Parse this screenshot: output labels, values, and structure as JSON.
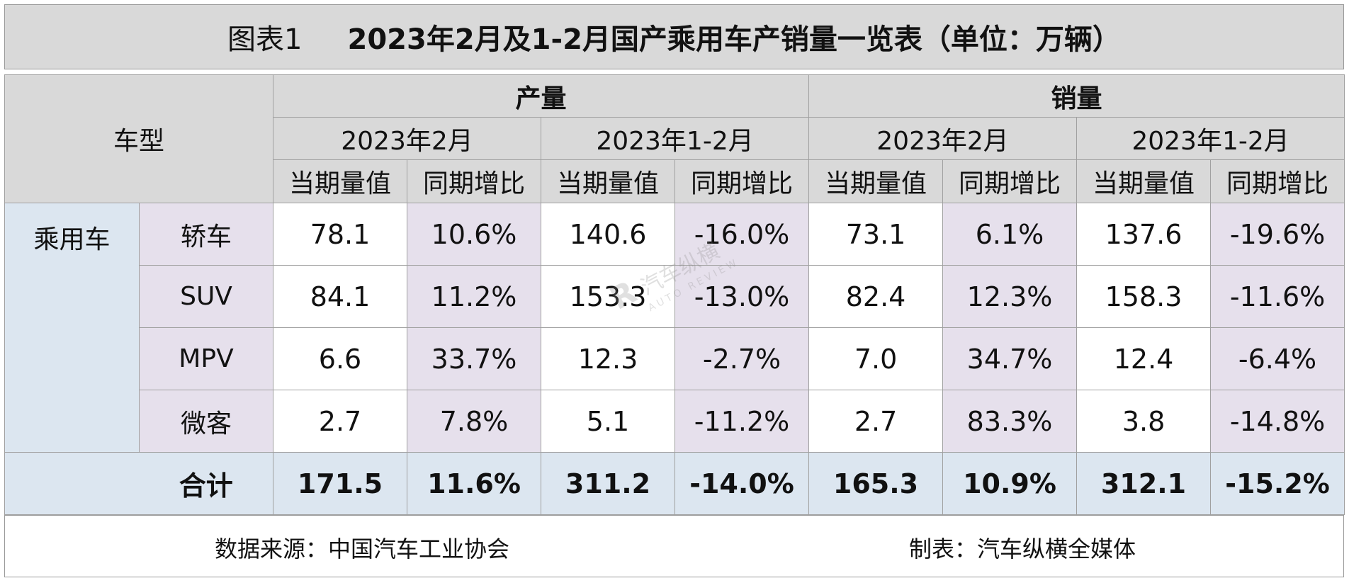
{
  "title": {
    "prefix": "图表1",
    "main": "2023年2月及1-2月国产乘用车产销量一览表（单位：万辆）"
  },
  "header": {
    "vehicle_type": "车型",
    "production": "产量",
    "sales": "销量",
    "period_month": "2023年2月",
    "period_ytd": "2023年1-2月",
    "current_value": "当期量值",
    "yoy": "同期增比"
  },
  "category": "乘用车",
  "rows": [
    {
      "type": "轿车",
      "prod_m": "78.1",
      "prod_m_yoy": "10.6%",
      "prod_ytd": "140.6",
      "prod_ytd_yoy": "-16.0%",
      "sales_m": "73.1",
      "sales_m_yoy": "6.1%",
      "sales_ytd": "137.6",
      "sales_ytd_yoy": "-19.6%"
    },
    {
      "type": "SUV",
      "prod_m": "84.1",
      "prod_m_yoy": "11.2%",
      "prod_ytd": "153.3",
      "prod_ytd_yoy": "-13.0%",
      "sales_m": "82.4",
      "sales_m_yoy": "12.3%",
      "sales_ytd": "158.3",
      "sales_ytd_yoy": "-11.6%"
    },
    {
      "type": "MPV",
      "prod_m": "6.6",
      "prod_m_yoy": "33.7%",
      "prod_ytd": "12.3",
      "prod_ytd_yoy": "-2.7%",
      "sales_m": "7.0",
      "sales_m_yoy": "34.7%",
      "sales_ytd": "12.4",
      "sales_ytd_yoy": "-6.4%"
    },
    {
      "type": "微客",
      "prod_m": "2.7",
      "prod_m_yoy": "7.8%",
      "prod_ytd": "5.1",
      "prod_ytd_yoy": "-11.2%",
      "sales_m": "2.7",
      "sales_m_yoy": "83.3%",
      "sales_ytd": "3.8",
      "sales_ytd_yoy": "-14.8%"
    }
  ],
  "total": {
    "label": "合计",
    "prod_m": "171.5",
    "prod_m_yoy": "11.6%",
    "prod_ytd": "311.2",
    "prod_ytd_yoy": "-14.0%",
    "sales_m": "165.3",
    "sales_m_yoy": "10.9%",
    "sales_ytd": "312.1",
    "sales_ytd_yoy": "-15.2%"
  },
  "footer": {
    "source": "数据来源：中国汽车工业协会",
    "maker": "制表：汽车纵横全媒体"
  },
  "watermark": {
    "cn": "汽车纵横",
    "en": "AUTO REVIEW"
  }
}
